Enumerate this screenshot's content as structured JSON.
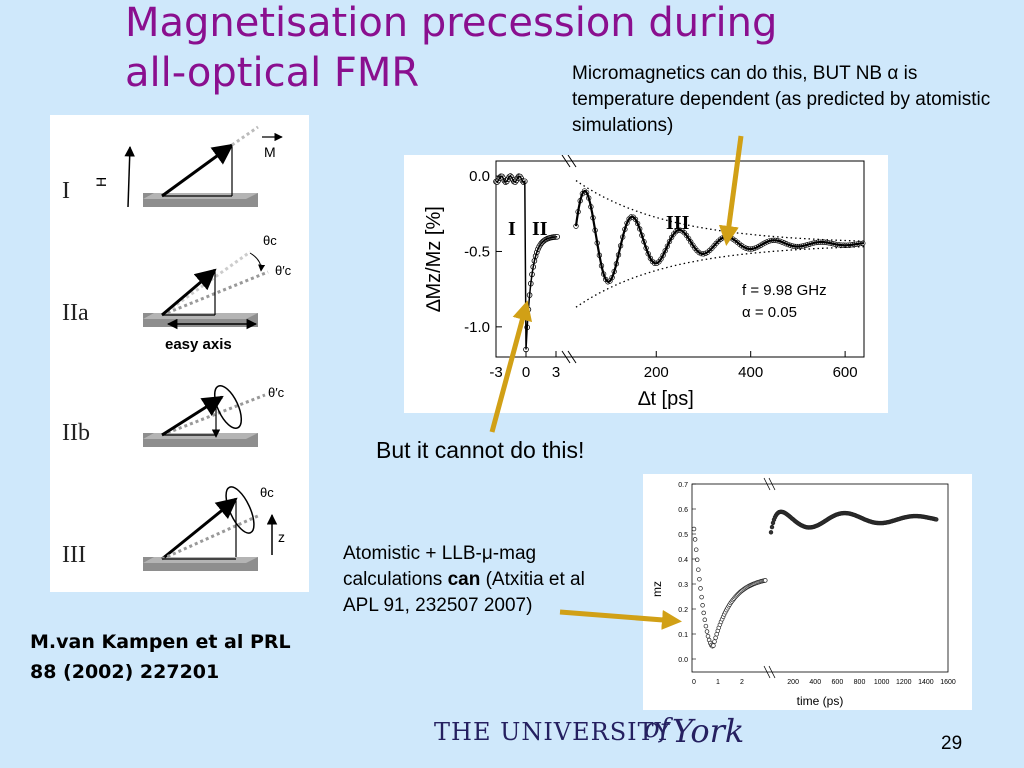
{
  "slide": {
    "title_line1": "Magnetisation precession during",
    "title_line2": "all-optical FMR",
    "note_top": "Micromagnetics can do this, BUT NB α is temperature dependent (as predicted by atomistic simulations)",
    "citation_line1": "M.van Kampen et al PRL",
    "citation_line2": "88 (2002) 227201",
    "cannot_text": "But it cannot do this!",
    "atomistic_pre": "Atomistic + LLB-μ-mag calculations ",
    "atomistic_bold": "can",
    "atomistic_post": " (Atxitia et al APL 91, 232507 2007)",
    "page_number": "29",
    "accent_color": "#8a0f8f",
    "arrow_color": "#d1a016"
  },
  "logo": {
    "the_university": "THE UNIVERSITY",
    "of": "of",
    "york": "York"
  },
  "diagram": {
    "stages": [
      "I",
      "IIa",
      "IIb",
      "III"
    ],
    "labels": {
      "H": "H",
      "M": "M",
      "z": "z",
      "theta_c": "θc",
      "theta_c_prime": "θ′c",
      "easy_axis": "easy axis"
    }
  },
  "chart_data": [
    {
      "type": "scatter",
      "title": "",
      "xlabel": "∆t [ps]",
      "ylabel": "∆Mz/Mz [%]",
      "xticks_left": [
        "-3",
        "0",
        "3"
      ],
      "xticks_right": [
        "200",
        "400",
        "600"
      ],
      "yticks": [
        "0.0",
        "-0.5",
        "-1.0"
      ],
      "ylim": [
        -1.2,
        0.1
      ],
      "regions": [
        "I",
        "II",
        "III"
      ],
      "annotation_f": "f  = 9.98 GHz",
      "annotation_alpha": "α = 0.05",
      "frequency_ghz": 9.98,
      "damping_alpha": 0.05
    },
    {
      "type": "scatter",
      "title": "",
      "xlabel": "time (ps)",
      "ylabel": "mz",
      "yticks": [
        "0.7",
        "0.6",
        "0.5",
        "0.4",
        "0.3",
        "0.2",
        "0.1",
        "0.0"
      ],
      "xticks_left": [
        "0",
        "1",
        "2"
      ],
      "xticks_right": [
        "200",
        "400",
        "600",
        "800",
        "1000",
        "1200",
        "1400",
        "1600"
      ],
      "ylim": [
        0.0,
        0.7
      ]
    }
  ]
}
